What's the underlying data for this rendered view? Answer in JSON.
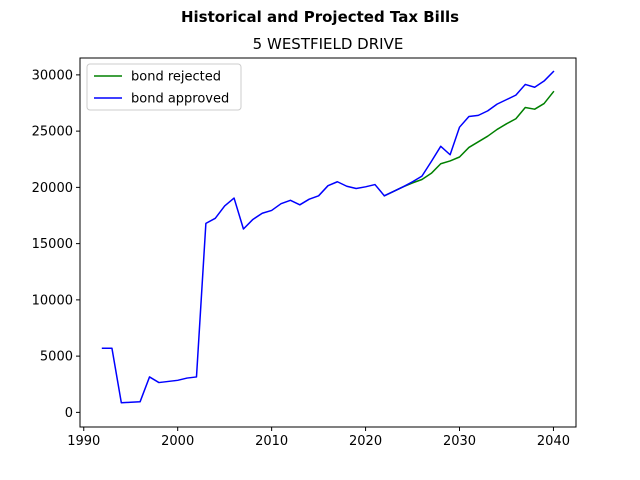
{
  "chart_data": {
    "type": "line",
    "suptitle": "Historical and Projected Tax Bills",
    "title": "5 WESTFIELD DRIVE",
    "xlabel": "",
    "ylabel": "",
    "xlim": [
      1989.6,
      2042.4
    ],
    "ylim": [
      -1300,
      31500
    ],
    "xticks": [
      1990,
      2000,
      2010,
      2020,
      2030,
      2040
    ],
    "yticks": [
      0,
      5000,
      10000,
      15000,
      20000,
      25000,
      30000
    ],
    "legend_position": "top-left",
    "grid": false,
    "series": [
      {
        "name": "bond rejected",
        "color": "#008000",
        "x": [
          2022,
          2023,
          2024,
          2025,
          2026,
          2027,
          2028,
          2029,
          2030,
          2031,
          2032,
          2033,
          2034,
          2035,
          2036,
          2037,
          2038,
          2039,
          2040
        ],
        "y": [
          19250,
          19650,
          20050,
          20400,
          20700,
          21250,
          22100,
          22350,
          22700,
          23550,
          24050,
          24550,
          25150,
          25650,
          26100,
          27100,
          26950,
          27450,
          28500
        ]
      },
      {
        "name": "bond approved",
        "color": "#0000ff",
        "x": [
          1992,
          1993,
          1994,
          1995,
          1996,
          1997,
          1998,
          1999,
          2000,
          2001,
          2002,
          2003,
          2004,
          2005,
          2006,
          2007,
          2008,
          2009,
          2010,
          2011,
          2012,
          2013,
          2014,
          2015,
          2016,
          2017,
          2018,
          2019,
          2020,
          2021,
          2022,
          2023,
          2024,
          2025,
          2026,
          2027,
          2028,
          2029,
          2030,
          2031,
          2032,
          2033,
          2034,
          2035,
          2036,
          2037,
          2038,
          2039,
          2040
        ],
        "y": [
          5700,
          5700,
          850,
          900,
          950,
          3150,
          2650,
          2750,
          2850,
          3050,
          3150,
          16800,
          17250,
          18350,
          19050,
          16300,
          17150,
          17700,
          17950,
          18550,
          18850,
          18450,
          18950,
          19250,
          20150,
          20500,
          20100,
          19900,
          20050,
          20250,
          19250,
          19650,
          20050,
          20500,
          21000,
          22300,
          23650,
          22900,
          25350,
          26300,
          26400,
          26800,
          27400,
          27800,
          28200,
          29150,
          28900,
          29450,
          30300
        ]
      }
    ]
  }
}
